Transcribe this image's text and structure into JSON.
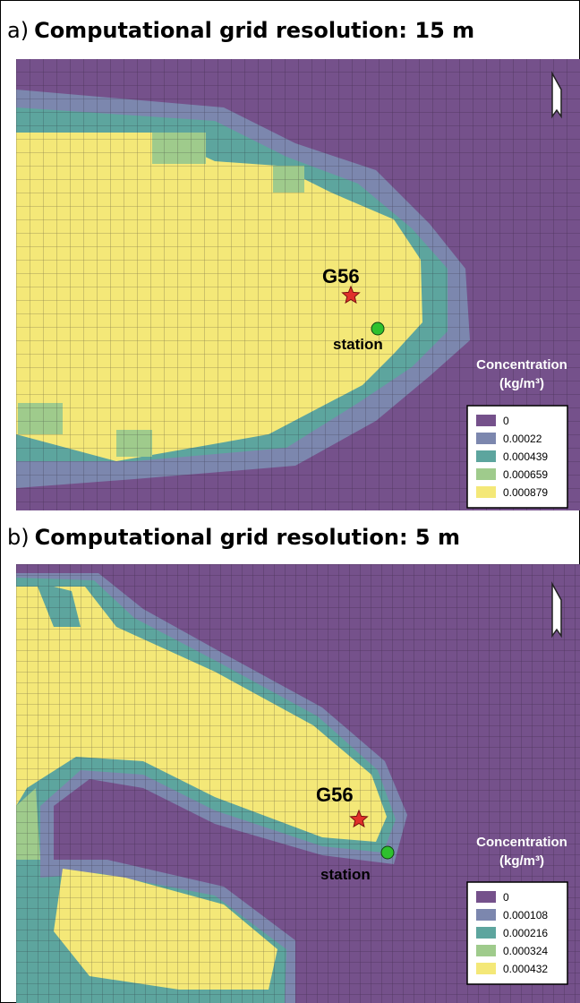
{
  "panels": [
    {
      "label": "a)",
      "title": "Computational grid resolution: 15 m",
      "marker": "G56",
      "station": "station",
      "legend": {
        "title": "Concentration",
        "unit": "(kg/m³)",
        "entries": [
          "0",
          "0.00022",
          "0.000439",
          "0.000659",
          "0.000879"
        ]
      }
    },
    {
      "label": "b)",
      "title": "Computational grid resolution: 5 m",
      "marker": "G56",
      "station": "station",
      "legend": {
        "title": "Concentration",
        "unit": "(kg/m³)",
        "entries": [
          "0",
          "0.000108",
          "0.000216",
          "0.000324",
          "0.000432"
        ]
      }
    }
  ]
}
